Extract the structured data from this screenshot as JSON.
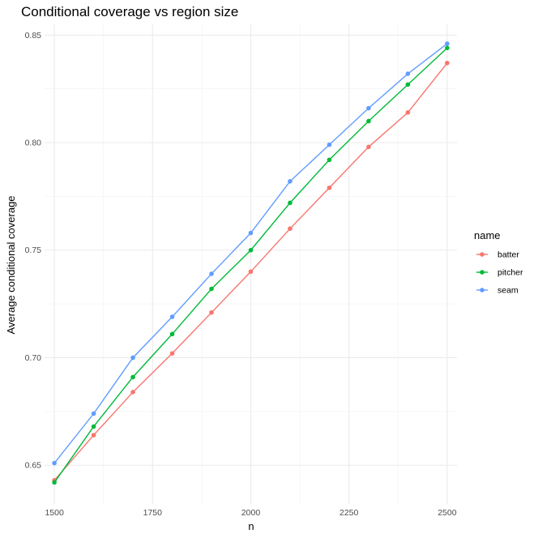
{
  "chart_data": {
    "type": "line",
    "title": "Conditional coverage vs region size",
    "xlabel": "n",
    "ylabel": "Average conditional coverage",
    "x": [
      1500,
      1600,
      1700,
      1800,
      1900,
      2000,
      2100,
      2200,
      2300,
      2400,
      2500
    ],
    "xlim": [
      1475,
      2525
    ],
    "ylim": [
      0.632,
      0.855
    ],
    "xticks": [
      1500,
      1750,
      2000,
      2250,
      2500
    ],
    "xtick_labels": [
      "1500",
      "1750",
      "2000",
      "2250",
      "2500"
    ],
    "yticks": [
      0.65,
      0.7,
      0.75,
      0.8,
      0.85
    ],
    "ytick_labels": [
      "0.65",
      "0.70",
      "0.75",
      "0.80",
      "0.85"
    ],
    "grid": true,
    "legend_title": "name",
    "legend_position": "right",
    "series": [
      {
        "name": "batter",
        "color": "#F8766D",
        "values": [
          0.643,
          0.664,
          0.684,
          0.702,
          0.721,
          0.74,
          0.76,
          0.779,
          0.798,
          0.814,
          0.837
        ]
      },
      {
        "name": "pitcher",
        "color": "#00BA38",
        "values": [
          0.642,
          0.668,
          0.691,
          0.711,
          0.732,
          0.75,
          0.772,
          0.792,
          0.81,
          0.827,
          0.844
        ]
      },
      {
        "name": "seam",
        "color": "#619CFF",
        "values": [
          0.651,
          0.674,
          0.7,
          0.719,
          0.739,
          0.758,
          0.782,
          0.799,
          0.816,
          0.832,
          0.846
        ]
      }
    ]
  }
}
